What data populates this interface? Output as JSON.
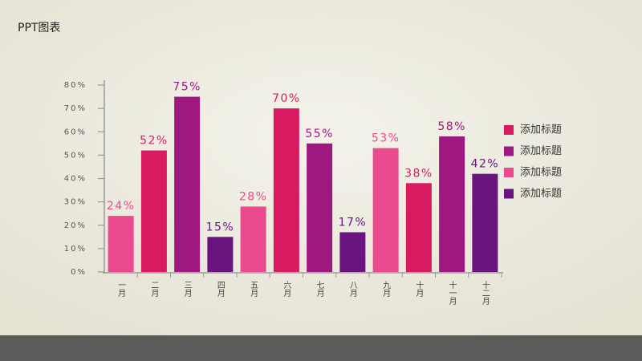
{
  "chart_data": {
    "type": "bar",
    "title": "PPT图表",
    "categories": [
      "一月",
      "二月",
      "三月",
      "四月",
      "五月",
      "六月",
      "七月",
      "八月",
      "九月",
      "十月",
      "十一月",
      "十二月"
    ],
    "series": [
      {
        "name": "添加标题",
        "color": "#d81b60",
        "values": [
          null,
          52,
          null,
          null,
          null,
          70,
          null,
          null,
          null,
          38,
          null,
          null
        ],
        "value_labels": [
          null,
          "52%",
          null,
          null,
          null,
          "70%",
          null,
          null,
          null,
          "38%",
          null,
          null
        ]
      },
      {
        "name": "添加标题",
        "color": "#9e1880",
        "values": [
          null,
          null,
          75,
          null,
          null,
          null,
          55,
          null,
          null,
          null,
          58,
          null
        ],
        "value_labels": [
          null,
          null,
          "75%",
          null,
          null,
          null,
          "55%",
          null,
          null,
          null,
          "58%",
          null
        ]
      },
      {
        "name": "添加标题",
        "color": "#ec4a8f",
        "values": [
          24,
          null,
          null,
          null,
          28,
          null,
          null,
          null,
          53,
          null,
          null,
          null
        ],
        "value_labels": [
          "24%",
          null,
          null,
          null,
          "28%",
          null,
          null,
          null,
          "53%",
          null,
          null,
          null
        ]
      },
      {
        "name": "添加标题",
        "color": "#6a1480",
        "values": [
          null,
          null,
          null,
          15,
          null,
          null,
          null,
          17,
          null,
          null,
          null,
          42
        ],
        "value_labels": [
          null,
          null,
          null,
          "15%",
          null,
          null,
          null,
          "17%",
          null,
          null,
          null,
          "42%"
        ]
      }
    ],
    "ylim": [
      0,
      80
    ],
    "yticks": [
      {
        "value": 0,
        "label": "0%"
      },
      {
        "value": 10,
        "label": "10%"
      },
      {
        "value": 20,
        "label": "20%"
      },
      {
        "value": 30,
        "label": "30%"
      },
      {
        "value": 40,
        "label": "40%"
      },
      {
        "value": 50,
        "label": "50%"
      },
      {
        "value": 60,
        "label": "60%"
      },
      {
        "value": 70,
        "label": "70%"
      },
      {
        "value": 80,
        "label": "80%"
      }
    ]
  }
}
